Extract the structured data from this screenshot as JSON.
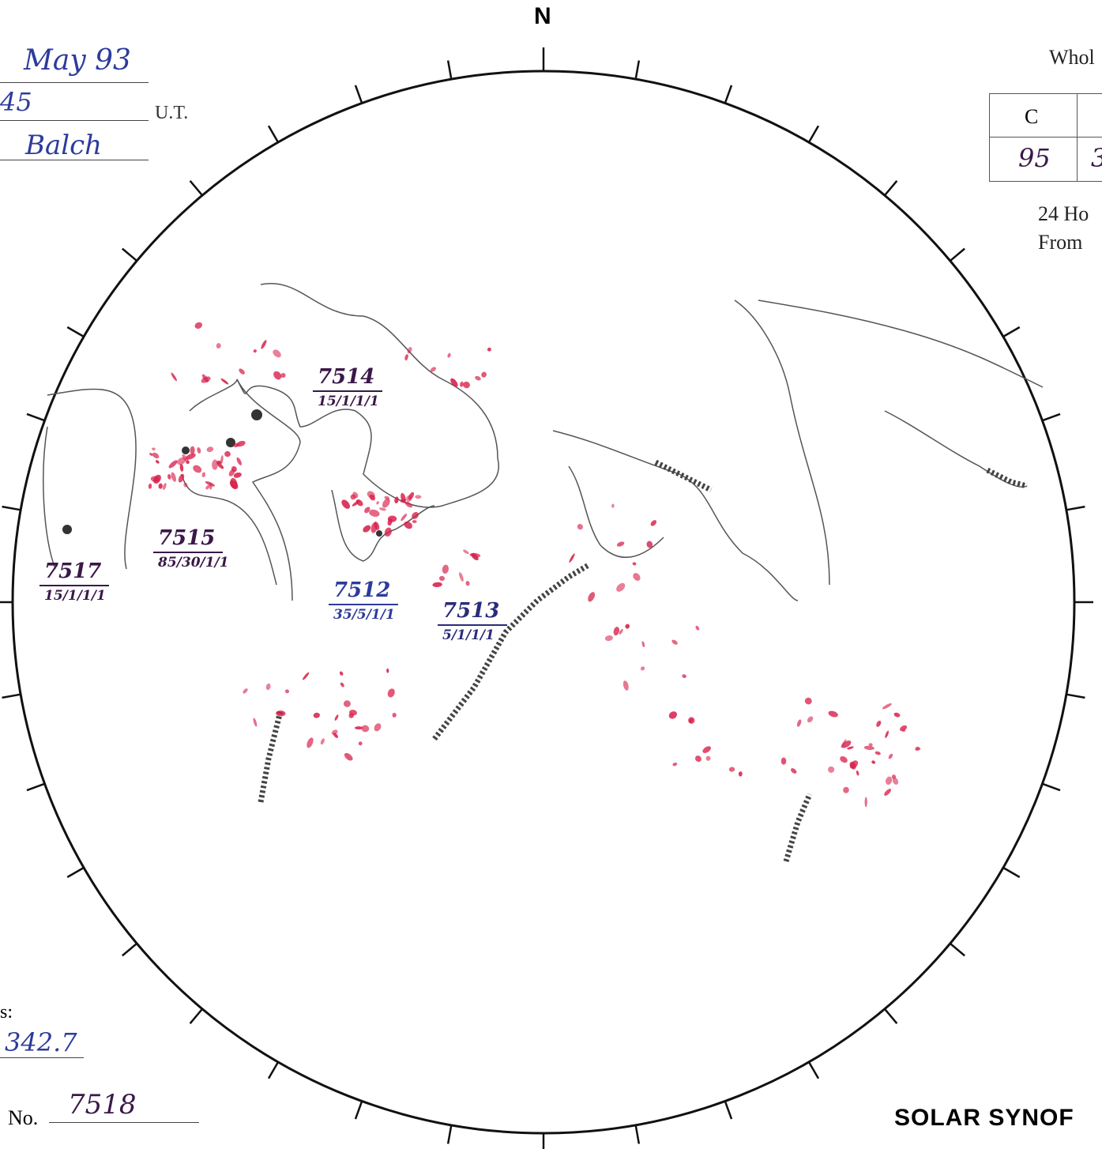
{
  "header": {
    "date": "May 93",
    "time": "45",
    "time_unit": "U.T.",
    "observer": "Balch"
  },
  "north": "N",
  "whole_disk": {
    "title": "Whol",
    "headers": [
      "C"
    ],
    "values": [
      "95",
      "3"
    ],
    "note_1": "24 Ho",
    "note_2": "From"
  },
  "regions": [
    {
      "number": "7514",
      "class": "15/1/1/1"
    },
    {
      "number": "7515",
      "class": "85/30/1/1"
    },
    {
      "number": "7517",
      "class": "15/1/1/1"
    },
    {
      "number": "7512",
      "class": "35/5/1/1"
    },
    {
      "number": "7513",
      "class": "5/1/1/1"
    }
  ],
  "footer": {
    "carrington_label": "s:",
    "carrington_value": "342.7",
    "number_label": "No.",
    "number_value": "7518",
    "title": "SOLAR SYNOF"
  }
}
